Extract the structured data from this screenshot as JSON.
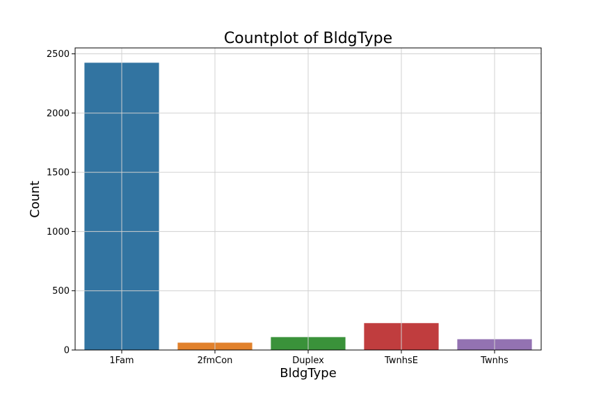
{
  "chart_data": {
    "type": "bar",
    "title": "Countplot of BldgType",
    "xlabel": "BldgType",
    "ylabel": "Count",
    "categories": [
      "1Fam",
      "2fmCon",
      "Duplex",
      "TwnhsE",
      "Twnhs"
    ],
    "values": [
      2425,
      62,
      109,
      227,
      91
    ],
    "colors": [
      "#3274a1",
      "#e1812c",
      "#3a923a",
      "#c03d3e",
      "#9372b2"
    ],
    "ylim": [
      0,
      2550
    ],
    "yticks": [
      0,
      500,
      1000,
      1500,
      2000,
      2500
    ],
    "grid": true
  }
}
